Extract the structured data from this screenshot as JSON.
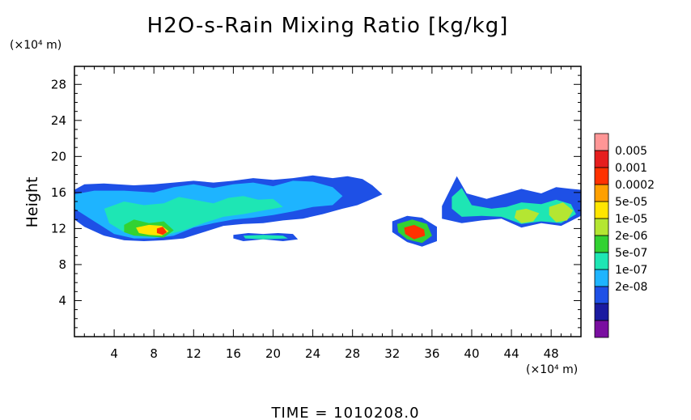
{
  "chart_data": {
    "type": "heatmap",
    "title": "H2O-s-Rain Mixing Ratio [kg/kg]",
    "ylabel": "Height",
    "y_unit": "(×10⁴ m)",
    "x_unit": "(×10⁴ m)",
    "xlim": [
      0,
      51
    ],
    "ylim": [
      0,
      30
    ],
    "x_ticks": [
      4,
      8,
      12,
      16,
      20,
      24,
      28,
      32,
      36,
      40,
      44,
      48
    ],
    "y_ticks": [
      4,
      8,
      12,
      16,
      20,
      24,
      28
    ],
    "time_label": "TIME = 1010208.0",
    "legend": {
      "labels": [
        "0.005",
        "0.001",
        "0.0002",
        "5e-05",
        "1e-05",
        "2e-06",
        "5e-07",
        "1e-07",
        "2e-08"
      ],
      "colors": [
        "#7a0fa0",
        "#1a1aa0",
        "#1e50e6",
        "#1eb4ff",
        "#1ee6b4",
        "#32d232",
        "#b4e632",
        "#ffe600",
        "#ffa000",
        "#ff3200",
        "#e61e1e",
        "#ff9696"
      ]
    },
    "regions": [
      {
        "level": 2,
        "x": [
          0,
          1,
          3,
          6,
          8,
          10,
          12,
          14,
          16,
          18,
          20,
          22,
          24,
          26,
          27.5,
          29,
          30,
          31,
          30,
          28.5,
          27,
          25,
          23,
          21,
          19,
          17,
          15,
          13,
          11,
          9,
          7,
          5,
          3,
          1,
          0
        ],
        "y": [
          16.3,
          16.9,
          17.0,
          16.8,
          16.9,
          17.1,
          17.3,
          17.1,
          17.3,
          17.6,
          17.4,
          17.6,
          17.9,
          17.6,
          17.8,
          17.5,
          16.8,
          15.8,
          15.3,
          14.6,
          14.2,
          13.6,
          13.1,
          12.9,
          12.6,
          12.5,
          12.3,
          11.6,
          10.9,
          10.7,
          10.6,
          10.7,
          11.2,
          12.2,
          13.0
        ]
      },
      {
        "level": 3,
        "x": [
          0,
          2,
          5,
          8,
          10,
          12,
          14,
          16,
          18,
          20,
          22,
          24,
          26,
          27,
          26,
          24,
          22,
          20,
          18,
          16,
          14,
          12,
          10,
          8,
          6,
          4,
          2,
          0
        ],
        "y": [
          15.8,
          16.2,
          16.2,
          16.0,
          16.6,
          16.9,
          16.5,
          16.9,
          17.1,
          16.7,
          17.3,
          17.2,
          16.6,
          15.6,
          14.6,
          14.4,
          13.9,
          13.5,
          13.2,
          13.0,
          12.6,
          12.1,
          11.2,
          10.9,
          10.9,
          11.4,
          12.8,
          14.2
        ]
      },
      {
        "level": 4,
        "x": [
          3,
          5,
          7,
          9,
          10.5,
          12,
          14,
          15.5,
          17,
          18.5,
          20,
          21,
          19,
          17,
          15,
          13,
          11,
          9,
          7,
          5,
          3.5
        ],
        "y": [
          14.2,
          15.0,
          14.6,
          14.8,
          15.5,
          15.2,
          14.8,
          15.4,
          15.6,
          15.2,
          15.3,
          14.4,
          14.0,
          13.6,
          13.3,
          12.6,
          11.8,
          11.2,
          11.3,
          11.6,
          12.6
        ]
      },
      {
        "level": 5,
        "x": [
          5,
          6,
          7.5,
          9,
          10,
          9,
          7.5,
          6,
          5
        ],
        "y": [
          12.4,
          13.0,
          12.6,
          12.8,
          11.8,
          11.0,
          11.1,
          11.2,
          11.6
        ]
      },
      {
        "level": 7,
        "x": [
          6.2,
          7.5,
          8.8,
          9.5,
          8.8,
          7.5,
          6.5
        ],
        "y": [
          12.1,
          12.4,
          12.3,
          11.7,
          11.2,
          11.3,
          11.5
        ]
      },
      {
        "level": 9,
        "x": [
          8.3,
          8.9,
          9.3,
          8.9,
          8.3
        ],
        "y": [
          12.0,
          12.2,
          11.6,
          11.3,
          11.5
        ]
      },
      {
        "level": 2,
        "x": [
          16,
          17.5,
          19,
          20.5,
          22,
          22.5,
          21,
          19,
          17,
          16
        ],
        "y": [
          11.3,
          11.5,
          11.4,
          11.5,
          11.4,
          10.8,
          10.6,
          10.8,
          10.6,
          10.9
        ]
      },
      {
        "level": 4,
        "x": [
          17,
          19,
          21,
          21.5,
          19,
          17.2
        ],
        "y": [
          11.2,
          11.3,
          11.2,
          10.9,
          10.8,
          10.9
        ]
      },
      {
        "level": 2,
        "x": [
          32,
          33.5,
          35,
          36.5,
          36.5,
          35,
          33.5,
          32
        ],
        "y": [
          12.8,
          13.4,
          13.2,
          12.2,
          10.6,
          10.0,
          10.5,
          11.6
        ]
      },
      {
        "level": 5,
        "x": [
          32.5,
          34,
          35.5,
          36,
          35,
          33.5,
          32.6
        ],
        "y": [
          12.5,
          13.0,
          12.5,
          11.2,
          10.4,
          10.8,
          11.6
        ]
      },
      {
        "level": 9,
        "x": [
          33.2,
          34.2,
          35.2,
          35.3,
          34.2,
          33.3
        ],
        "y": [
          12.1,
          12.4,
          11.9,
          11.2,
          10.8,
          11.4
        ]
      },
      {
        "level": 2,
        "x": [
          37,
          38.5,
          39.5,
          41.5,
          43.5,
          45,
          47,
          48.5,
          50,
          51,
          51,
          49,
          47,
          45,
          43,
          41,
          39,
          37
        ],
        "y": [
          14.5,
          17.8,
          15.9,
          15.3,
          15.9,
          16.4,
          15.9,
          16.6,
          16.4,
          16.3,
          13.4,
          12.3,
          12.6,
          12.1,
          13.1,
          12.9,
          12.6,
          13.1
        ]
      },
      {
        "level": 4,
        "x": [
          38,
          39,
          40,
          42,
          43.5,
          45,
          47,
          48.5,
          50,
          50.5,
          49,
          47,
          45,
          43,
          41,
          39,
          38
        ],
        "y": [
          15.5,
          16.5,
          14.6,
          14.2,
          14.4,
          14.9,
          14.7,
          15.2,
          14.7,
          13.6,
          12.6,
          12.8,
          12.5,
          13.3,
          13.4,
          13.3,
          14.2
        ]
      },
      {
        "level": 6,
        "x": [
          44.5,
          45.5,
          46.8,
          46.2,
          45,
          44.3
        ],
        "y": [
          14.0,
          14.2,
          13.7,
          12.8,
          12.6,
          13.2
        ]
      },
      {
        "level": 6,
        "x": [
          47.8,
          49.2,
          50.2,
          49.6,
          48.5,
          47.8
        ],
        "y": [
          14.4,
          14.9,
          14.0,
          12.9,
          12.7,
          13.5
        ]
      }
    ],
    "grid": false
  }
}
